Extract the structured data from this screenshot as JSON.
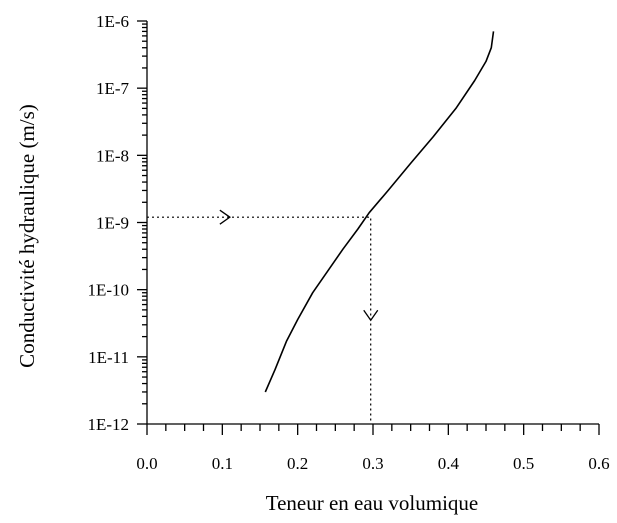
{
  "chart_data": {
    "type": "line",
    "title": "",
    "xlabel": "Teneur en eau volumique",
    "ylabel": "Conductivité hydraulique (m/s)",
    "xlim": [
      0.0,
      0.6
    ],
    "ylim": [
      1e-12,
      1e-06
    ],
    "yscale": "log",
    "grid": false,
    "x_ticks": [
      {
        "value": 0.0,
        "label": "0.0"
      },
      {
        "value": 0.1,
        "label": "0.1"
      },
      {
        "value": 0.2,
        "label": "0.2"
      },
      {
        "value": 0.3,
        "label": "0.3"
      },
      {
        "value": 0.4,
        "label": "0.4"
      },
      {
        "value": 0.5,
        "label": "0.5"
      },
      {
        "value": 0.6,
        "label": "0.6"
      }
    ],
    "y_ticks": [
      {
        "value": 1e-12,
        "label": "1E-12"
      },
      {
        "value": 1e-11,
        "label": "1E-11"
      },
      {
        "value": 1e-10,
        "label": "1E-10"
      },
      {
        "value": 1e-09,
        "label": "1E-9"
      },
      {
        "value": 1e-08,
        "label": "1E-8"
      },
      {
        "value": 1e-07,
        "label": "1E-7"
      },
      {
        "value": 1e-06,
        "label": "1E-6"
      }
    ],
    "series": [
      {
        "x": [
          0.157,
          0.17,
          0.185,
          0.2,
          0.22,
          0.24,
          0.26,
          0.28,
          0.295,
          0.32,
          0.35,
          0.38,
          0.41,
          0.435,
          0.45,
          0.457,
          0.46
        ],
        "y": [
          3e-12,
          6.5e-12,
          1.7e-11,
          3.6e-11,
          9e-11,
          1.9e-10,
          4e-10,
          8e-10,
          1.4e-09,
          3e-09,
          7.6e-09,
          1.9e-08,
          5e-08,
          1.3e-07,
          2.5e-07,
          4e-07,
          7e-07
        ]
      }
    ],
    "annotations": [
      {
        "type": "dotted-path",
        "points": [
          [
            0.0,
            1.2e-09
          ],
          [
            0.297,
            1.2e-09
          ],
          [
            0.297,
            1e-12
          ]
        ]
      },
      {
        "type": "arrow",
        "at": [
          0.11,
          1.2e-09
        ],
        "direction": "right"
      },
      {
        "type": "arrow",
        "at": [
          0.297,
          3.5e-11
        ],
        "direction": "down"
      }
    ]
  }
}
